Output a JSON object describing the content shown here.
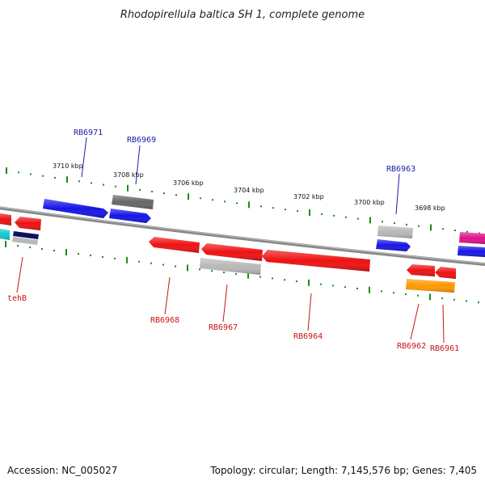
{
  "title": "Rhodopirellula baltica SH 1, complete genome",
  "footer": {
    "accession": "Accession: NC_005027",
    "summary": "Topology: circular; Length: 7,145,576 bp; Genes: 7,405"
  },
  "ticks": [
    {
      "label": "3710 kbp"
    },
    {
      "label": "3708 kbp"
    },
    {
      "label": "3706 kbp"
    },
    {
      "label": "3704 kbp"
    },
    {
      "label": "3702 kbp"
    },
    {
      "label": "3700 kbp"
    },
    {
      "label": "3698 kbp"
    }
  ],
  "colors": {
    "backbone": "#888888",
    "tick": "#1a8c1a",
    "forward_label": "#1a1aa8",
    "reverse_label": "#c81414",
    "blue": "#1515e6",
    "red": "#ee1111",
    "gray": "#b8b8b8",
    "dark_gray": "#666666",
    "navy": "#101060",
    "cyan": "#10c8d0",
    "orange": "#ff9900",
    "magenta": "#e0138a"
  },
  "genes_forward": [
    {
      "name": "RB6971"
    },
    {
      "name": "RB6969"
    },
    {
      "name": "RB6963"
    }
  ],
  "genes_reverse": [
    {
      "name": "tehB"
    },
    {
      "name": "RB6968"
    },
    {
      "name": "RB6967"
    },
    {
      "name": "RB6964"
    },
    {
      "name": "RB6962"
    },
    {
      "name": "RB6961"
    }
  ]
}
